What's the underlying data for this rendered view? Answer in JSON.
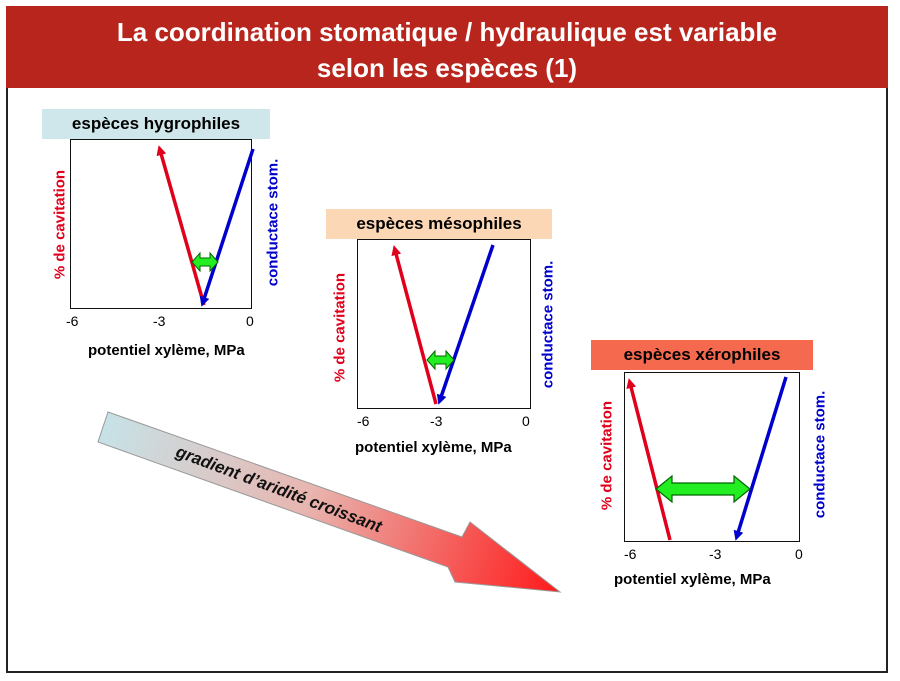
{
  "header": {
    "line1": "La coordination stomatique / hydraulique est variable",
    "line2": "selon les espèces  (1)",
    "color": "#b8251c"
  },
  "panels": [
    {
      "title": "espèces hygrophiles",
      "title_bg": "#cfe6ea",
      "xticks": [
        "-6",
        "-3",
        "0"
      ],
      "xlabel": "potentiel xylème, MPa",
      "left_axis_label": "% de cavitation",
      "right_axis_label": "conductace stom."
    },
    {
      "title": "espèces mésophiles",
      "title_bg": "#fbd7b5",
      "xticks": [
        "-6",
        "-3",
        "0"
      ],
      "xlabel": "potentiel xylème, MPa",
      "left_axis_label": "% de cavitation",
      "right_axis_label": "conductace stom."
    },
    {
      "title": "espèces xérophiles",
      "title_bg": "#f5694f",
      "xticks": [
        "-6",
        "-3",
        "0"
      ],
      "xlabel": "potentiel xylème, MPa",
      "left_axis_label": "% de cavitation",
      "right_axis_label": "conductace stom."
    }
  ],
  "gradient_arrow": {
    "label": "gradient d’aridité croissant",
    "color_start": "#c6e3e8",
    "color_end": "#ff1a1a"
  },
  "colors": {
    "cavitation": "#e0001b",
    "conductance": "#0000cc",
    "coordination": "#22ee22"
  }
}
